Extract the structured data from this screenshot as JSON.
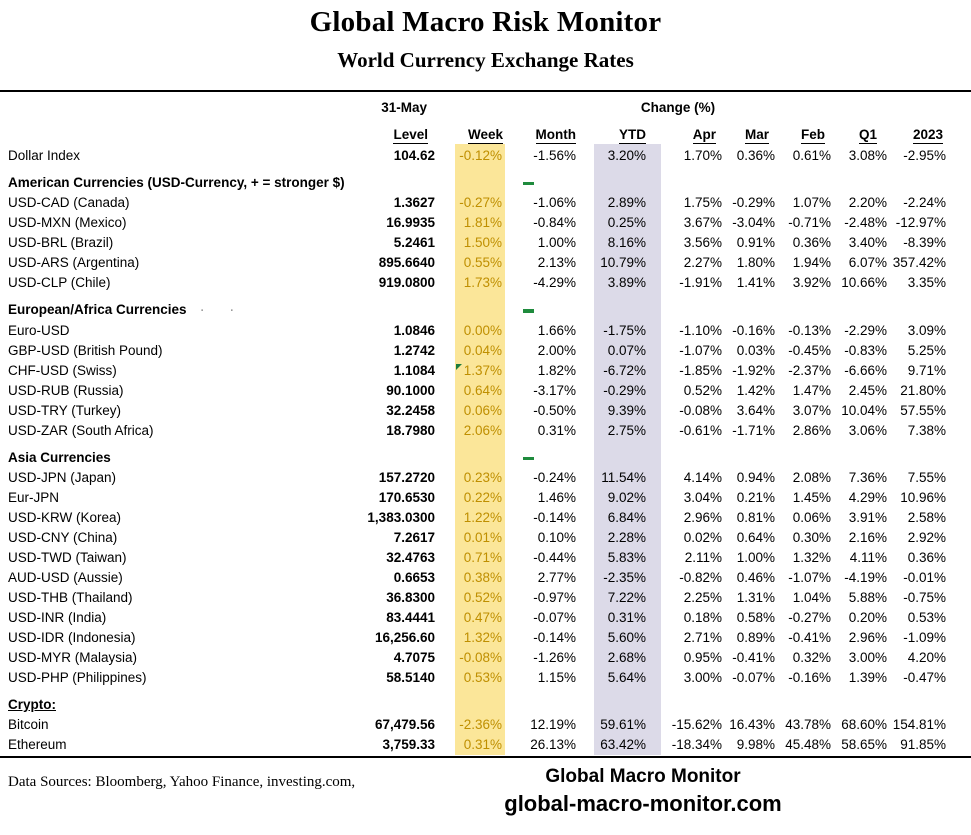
{
  "title": "Global Macro Risk Monitor",
  "subtitle": "World Currency Exchange Rates",
  "header": {
    "date_label": "31-May",
    "change_label": "Change (%)"
  },
  "columns": [
    "Level",
    "Week",
    "Month",
    "YTD",
    "Apr",
    "Mar",
    "Feb",
    "Q1",
    "2023"
  ],
  "colors": {
    "week_band": "#FBE699",
    "ytd_band": "#DCDAE8",
    "week_text": "#BF8F00",
    "marker_green": "#1F8B3D",
    "flag_green": "#1C7C3C"
  },
  "rows": [
    {
      "type": "data",
      "label": "Dollar Index",
      "level": "104.62",
      "week": "-0.12%",
      "month": "-1.56%",
      "ytd": "3.20%",
      "apr": "1.70%",
      "mar": "0.36%",
      "feb": "0.61%",
      "q1": "3.08%",
      "y2023": "-2.95%"
    },
    {
      "type": "section",
      "label": "American Currencies (USD-Currency, + = stronger $)",
      "dash": true
    },
    {
      "type": "data",
      "label": "USD-CAD (Canada)",
      "level": "1.3627",
      "week": "-0.27%",
      "month": "-1.06%",
      "ytd": "2.89%",
      "apr": "1.75%",
      "mar": "-0.29%",
      "feb": "1.07%",
      "q1": "2.20%",
      "y2023": "-2.24%"
    },
    {
      "type": "data",
      "label": "USD-MXN  (Mexico)",
      "level": "16.9935",
      "week": "1.81%",
      "month": "-0.84%",
      "ytd": "0.25%",
      "apr": "3.67%",
      "mar": "-3.04%",
      "feb": "-0.71%",
      "q1": "-2.48%",
      "y2023": "-12.97%"
    },
    {
      "type": "data",
      "label": "USD-BRL (Brazil)",
      "level": "5.2461",
      "week": "1.50%",
      "month": "1.00%",
      "ytd": "8.16%",
      "apr": "3.56%",
      "mar": "0.91%",
      "feb": "0.36%",
      "q1": "3.40%",
      "y2023": "-8.39%"
    },
    {
      "type": "data",
      "label": "USD-ARS (Argentina)",
      "level": "895.6640",
      "week": "0.55%",
      "month": "2.13%",
      "ytd": "10.79%",
      "apr": "2.27%",
      "mar": "1.80%",
      "feb": "1.94%",
      "q1": "6.07%",
      "y2023": "357.42%"
    },
    {
      "type": "data",
      "label": "USD-CLP (Chile)",
      "level": "919.0800",
      "week": "1.73%",
      "month": "-4.29%",
      "ytd": "3.89%",
      "apr": "-1.91%",
      "mar": "1.41%",
      "feb": "3.92%",
      "q1": "10.66%",
      "y2023": "3.35%"
    },
    {
      "type": "section",
      "label": "European/Africa Currencies",
      "dash": true,
      "dots": true
    },
    {
      "type": "data",
      "label": "Euro-USD",
      "level": "1.0846",
      "week": "0.00%",
      "month": "1.66%",
      "ytd": "-1.75%",
      "apr": "-1.10%",
      "mar": "-0.16%",
      "feb": "-0.13%",
      "q1": "-2.29%",
      "y2023": "3.09%"
    },
    {
      "type": "data",
      "label": "GBP-USD (British Pound)",
      "level": "1.2742",
      "week": "0.04%",
      "month": "2.00%",
      "ytd": "0.07%",
      "apr": "-1.07%",
      "mar": "0.03%",
      "feb": "-0.45%",
      "q1": "-0.83%",
      "y2023": "5.25%"
    },
    {
      "type": "data",
      "label": "CHF-USD (Swiss)",
      "level": "1.1084",
      "week": "1.37%",
      "flag": true,
      "month": "1.82%",
      "ytd": "-6.72%",
      "apr": "-1.85%",
      "mar": "-1.92%",
      "feb": "-2.37%",
      "q1": "-6.66%",
      "y2023": "9.71%"
    },
    {
      "type": "data",
      "label": "USD-RUB (Russia)",
      "level": "90.1000",
      "week": "0.64%",
      "month": "-3.17%",
      "ytd": "-0.29%",
      "apr": "0.52%",
      "mar": "1.42%",
      "feb": "1.47%",
      "q1": "2.45%",
      "y2023": "21.80%"
    },
    {
      "type": "data",
      "label": "USD-TRY (Turkey)",
      "level": "32.2458",
      "week": "0.06%",
      "month": "-0.50%",
      "ytd": "9.39%",
      "apr": "-0.08%",
      "mar": "3.64%",
      "feb": "3.07%",
      "q1": "10.04%",
      "y2023": "57.55%"
    },
    {
      "type": "data",
      "label": "USD-ZAR (South Africa)",
      "level": "18.7980",
      "week": "2.06%",
      "month": "0.31%",
      "ytd": "2.75%",
      "apr": "-0.61%",
      "mar": "-1.71%",
      "feb": "2.86%",
      "q1": "3.06%",
      "y2023": "7.38%"
    },
    {
      "type": "section",
      "label": "Asia Currencies",
      "dash": true
    },
    {
      "type": "data",
      "label": "USD-JPN (Japan)",
      "level": "157.2720",
      "week": "0.23%",
      "month": "-0.24%",
      "ytd": "11.54%",
      "apr": "4.14%",
      "mar": "0.94%",
      "feb": "2.08%",
      "q1": "7.36%",
      "y2023": "7.55%"
    },
    {
      "type": "data",
      "label": "Eur-JPN",
      "level": "170.6530",
      "week": "0.22%",
      "month": "1.46%",
      "ytd": "9.02%",
      "apr": "3.04%",
      "mar": "0.21%",
      "feb": "1.45%",
      "q1": "4.29%",
      "y2023": "10.96%"
    },
    {
      "type": "data",
      "label": "USD-KRW (Korea)",
      "level": "1,383.0300",
      "week": "1.22%",
      "month": "-0.14%",
      "ytd": "6.84%",
      "apr": "2.96%",
      "mar": "0.81%",
      "feb": "0.06%",
      "q1": "3.91%",
      "y2023": "2.58%"
    },
    {
      "type": "data",
      "label": "USD-CNY (China)",
      "level": "7.2617",
      "week": "0.01%",
      "month": "0.10%",
      "ytd": "2.28%",
      "apr": "0.02%",
      "mar": "0.64%",
      "feb": "0.30%",
      "q1": "2.16%",
      "y2023": "2.92%"
    },
    {
      "type": "data",
      "label": "USD-TWD (Taiwan)",
      "level": "32.4763",
      "week": "0.71%",
      "month": "-0.44%",
      "ytd": "5.83%",
      "apr": "2.11%",
      "mar": "1.00%",
      "feb": "1.32%",
      "q1": "4.11%",
      "y2023": "0.36%"
    },
    {
      "type": "data",
      "label": "AUD-USD (Aussie)",
      "level": "0.6653",
      "week": "0.38%",
      "month": "2.77%",
      "ytd": "-2.35%",
      "apr": "-0.82%",
      "mar": "0.46%",
      "feb": "-1.07%",
      "q1": "-4.19%",
      "y2023": "-0.01%"
    },
    {
      "type": "data",
      "label": "USD-THB  (Thailand)",
      "level": "36.8300",
      "week": "0.52%",
      "month": "-0.97%",
      "ytd": "7.22%",
      "apr": "2.25%",
      "mar": "1.31%",
      "feb": "1.04%",
      "q1": "5.88%",
      "y2023": "-0.75%"
    },
    {
      "type": "data",
      "label": "USD-INR (India)",
      "level": "83.4441",
      "week": "0.47%",
      "month": "-0.07%",
      "ytd": "0.31%",
      "apr": "0.18%",
      "mar": "0.58%",
      "feb": "-0.27%",
      "q1": "0.20%",
      "y2023": "0.53%"
    },
    {
      "type": "data",
      "label": "USD-IDR (Indonesia)",
      "level": "16,256.60",
      "week": "1.32%",
      "month": "-0.14%",
      "ytd": "5.60%",
      "apr": "2.71%",
      "mar": "0.89%",
      "feb": "-0.41%",
      "q1": "2.96%",
      "y2023": "-1.09%"
    },
    {
      "type": "data",
      "label": "USD-MYR (Malaysia)",
      "level": "4.7075",
      "week": "-0.08%",
      "month": "-1.26%",
      "ytd": "2.68%",
      "apr": "0.95%",
      "mar": "-0.41%",
      "feb": "0.32%",
      "q1": "3.00%",
      "y2023": "4.20%"
    },
    {
      "type": "data",
      "label": "USD-PHP (Philippines)",
      "level": "58.5140",
      "week": "0.53%",
      "month": "1.15%",
      "ytd": "5.64%",
      "apr": "3.00%",
      "mar": "-0.07%",
      "feb": "-0.16%",
      "q1": "1.39%",
      "y2023": "-0.47%"
    },
    {
      "type": "section",
      "label": "Crypto:",
      "underline": true
    },
    {
      "type": "data",
      "label": "Bitcoin",
      "level": "67,479.56",
      "week": "-2.36%",
      "month": "12.19%",
      "ytd": "59.61%",
      "apr": "-15.62%",
      "mar": "16.43%",
      "feb": "43.78%",
      "q1": "68.60%",
      "y2023": "154.81%"
    },
    {
      "type": "data",
      "label": "Ethereum",
      "level": "3,759.33",
      "week": "0.31%",
      "month": "26.13%",
      "ytd": "63.42%",
      "apr": "-18.34%",
      "mar": "9.98%",
      "feb": "45.48%",
      "q1": "58.65%",
      "y2023": "91.85%"
    }
  ],
  "footer": {
    "sources": "Data Sources:  Bloomberg,  Yahoo Finance, investing.com,",
    "brand": "Global Macro Monitor",
    "site": "global-macro-monitor.com"
  }
}
